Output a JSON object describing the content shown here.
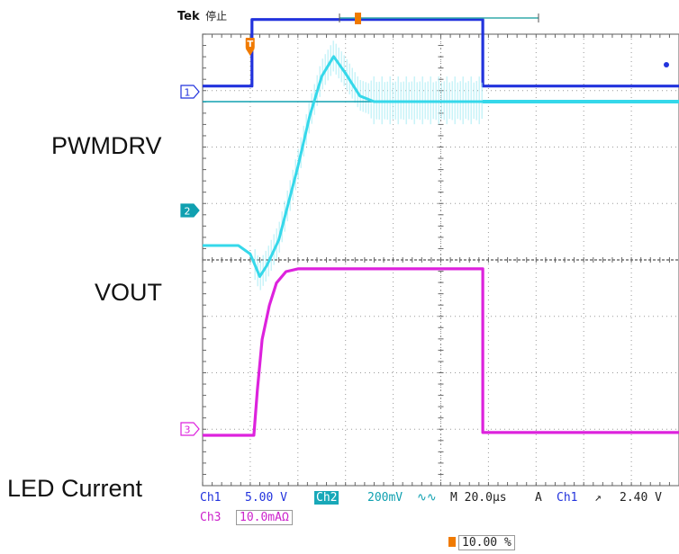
{
  "header": {
    "brand": "Tek",
    "status": "停止"
  },
  "channel_markers": [
    "1",
    "2",
    "3"
  ],
  "trigger_marker": "T",
  "signal_labels": {
    "pwmdrv": "PWMDRV",
    "vout": "VOUT",
    "led_current": "LED Current"
  },
  "readouts": {
    "ch1_name": "Ch1",
    "ch1_scale": "5.00 V",
    "ch2_name": "Ch2",
    "ch2_scale": "200mV",
    "ch2_bw_mark": "∿∿",
    "ch3_name": "Ch3",
    "ch3_scale": "10.0mAΩ",
    "timebase": "M 20.0µs",
    "trigger_mode": "A",
    "trigger_source": "Ch1",
    "trigger_slope": "↗",
    "trigger_level": "2.40 V",
    "trigger_position": "10.00 %"
  },
  "colors": {
    "ch1": "#2233dd",
    "ch2": "#10a0b0",
    "ch2_trace": "#35d8ea",
    "ch3": "#dd22dd",
    "trigger": "#f07a00",
    "grid": "#9a9a9a"
  },
  "chart_data": {
    "type": "line",
    "title": "",
    "xlabel": "",
    "ylabel": "",
    "divisions": {
      "x": 10,
      "y": 8
    },
    "time_per_div_us": 20,
    "xlim_us": [
      0,
      200
    ],
    "grid": true,
    "series": [
      {
        "name": "PWMDRV",
        "channel": "Ch1",
        "x": [
          0,
          20.7,
          20.7,
          117.6,
          117.6,
          200
        ],
        "y": [
          0.1,
          0.1,
          1.28,
          1.28,
          0.1,
          0.1
        ]
      },
      {
        "name": "VOUT",
        "channel": "Ch2",
        "x": [
          0,
          15,
          20,
          24,
          27,
          32,
          40,
          45,
          50,
          55,
          60,
          66,
          72,
          80,
          117.6,
          200
        ],
        "y": [
          0,
          0,
          -0.15,
          -0.55,
          -0.35,
          0.1,
          1.4,
          2.3,
          3.0,
          3.35,
          3.05,
          2.65,
          2.55,
          2.55,
          2.55,
          2.55
        ],
        "ripple_band": [
          22,
          117.6
        ]
      },
      {
        "name": "LED Current",
        "channel": "Ch3",
        "x": [
          0,
          21.5,
          23,
          25,
          28,
          31,
          35,
          40,
          117.6,
          117.6,
          200
        ],
        "y": [
          0,
          0,
          0.8,
          1.7,
          2.3,
          2.7,
          2.9,
          2.95,
          2.95,
          0.05,
          0.05
        ]
      }
    ],
    "reference_level_ch2": 2.55
  }
}
